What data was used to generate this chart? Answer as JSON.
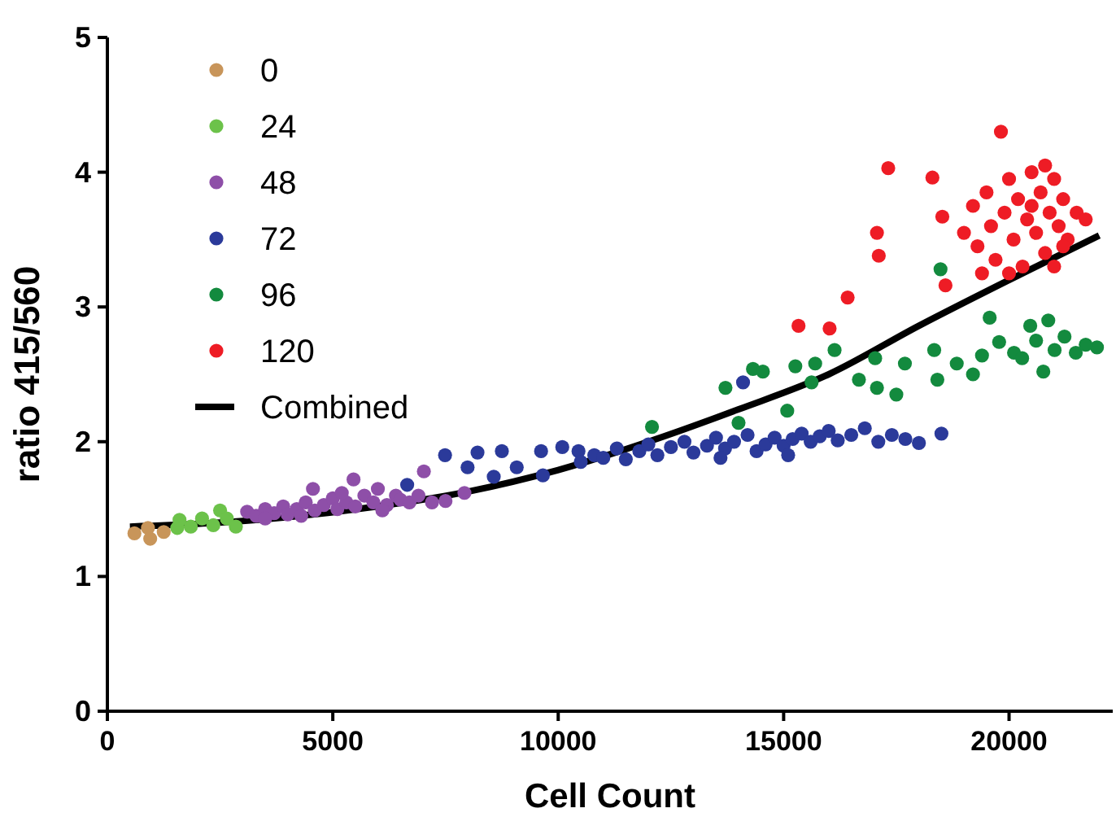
{
  "chart_data": {
    "type": "scatter",
    "xlabel": "Cell Count",
    "ylabel": "ratio 415/560",
    "xlim": [
      0,
      22300
    ],
    "ylim": [
      0,
      5
    ],
    "xticks": [
      0,
      5000,
      10000,
      15000,
      20000
    ],
    "yticks": [
      0,
      1,
      2,
      3,
      4,
      5
    ],
    "grid": false,
    "legend": "top left",
    "marker": "circle",
    "series": [
      {
        "name": "0",
        "color": "#c8955a",
        "x": [
          600,
          900,
          950,
          1250
        ],
        "values": [
          1.32,
          1.36,
          1.28,
          1.33
        ]
      },
      {
        "name": "24",
        "color": "#6cc24a",
        "x": [
          1550,
          1600,
          1850,
          2100,
          2350,
          2500,
          2650,
          2850
        ],
        "values": [
          1.36,
          1.42,
          1.37,
          1.43,
          1.38,
          1.49,
          1.43,
          1.37
        ]
      },
      {
        "name": "48",
        "color": "#8e4fa8",
        "x": [
          3100,
          3300,
          3500,
          3700,
          3900,
          4000,
          4200,
          4400,
          4560,
          4600,
          4800,
          5000,
          5100,
          5300,
          5460,
          5500,
          5700,
          5900,
          6000,
          6200,
          6400,
          6500,
          6700,
          6900,
          7020,
          7200,
          7500,
          7920,
          3500,
          4300,
          5200,
          6100
        ],
        "values": [
          1.48,
          1.45,
          1.5,
          1.47,
          1.52,
          1.46,
          1.5,
          1.55,
          1.65,
          1.49,
          1.53,
          1.58,
          1.5,
          1.55,
          1.72,
          1.52,
          1.6,
          1.55,
          1.65,
          1.53,
          1.6,
          1.57,
          1.55,
          1.6,
          1.78,
          1.55,
          1.56,
          1.62,
          1.43,
          1.45,
          1.62,
          1.49
        ]
      },
      {
        "name": "72",
        "color": "#2b3a9a",
        "x": [
          6650,
          7490,
          7990,
          8210,
          8750,
          8570,
          9080,
          9620,
          9660,
          10090,
          10450,
          10500,
          10800,
          11000,
          11300,
          11500,
          11800,
          12000,
          12200,
          12500,
          12800,
          13000,
          13300,
          13500,
          13700,
          13900,
          14100,
          14200,
          14400,
          14600,
          14800,
          15000,
          15200,
          15400,
          15600,
          15800,
          16000,
          16200,
          16500,
          16800,
          17100,
          17400,
          17700,
          18000,
          18500,
          13600,
          15100
        ],
        "values": [
          1.68,
          1.9,
          1.81,
          1.92,
          1.93,
          1.74,
          1.81,
          1.93,
          1.75,
          1.96,
          1.93,
          1.85,
          1.9,
          1.88,
          1.95,
          1.87,
          1.93,
          1.98,
          1.9,
          1.96,
          2.0,
          1.92,
          1.97,
          2.03,
          1.95,
          2.0,
          2.44,
          2.05,
          1.93,
          1.98,
          2.03,
          1.97,
          2.02,
          2.06,
          2.0,
          2.04,
          2.08,
          2.01,
          2.05,
          2.1,
          2.0,
          2.05,
          2.02,
          1.99,
          2.06,
          1.88,
          1.9
        ]
      },
      {
        "name": "96",
        "color": "#138a3e",
        "x": [
          12080,
          13710,
          14000,
          14320,
          14540,
          15080,
          15260,
          15620,
          15700,
          16130,
          16670,
          17030,
          17070,
          17500,
          17690,
          18340,
          18410,
          18480,
          18840,
          19200,
          19570,
          19780,
          20110,
          20290,
          20470,
          20760,
          20870,
          21010,
          21230,
          21480,
          21950,
          19400,
          20600,
          21700
        ],
        "values": [
          2.11,
          2.4,
          2.14,
          2.54,
          2.52,
          2.23,
          2.56,
          2.44,
          2.58,
          2.68,
          2.46,
          2.62,
          2.4,
          2.35,
          2.58,
          2.68,
          2.46,
          3.28,
          2.58,
          2.5,
          2.92,
          2.74,
          2.66,
          2.62,
          2.86,
          2.52,
          2.9,
          2.68,
          2.78,
          2.66,
          2.7,
          2.64,
          2.75,
          2.72
        ]
      },
      {
        "name": "120",
        "color": "#ee1c25",
        "x": [
          15330,
          16020,
          16420,
          17110,
          17070,
          17320,
          18300,
          18520,
          18590,
          19820,
          19000,
          19200,
          19300,
          19500,
          19600,
          19700,
          19900,
          20000,
          20100,
          20200,
          20300,
          20400,
          20500,
          20600,
          20700,
          20800,
          20900,
          21000,
          21100,
          21200,
          21300,
          21500,
          21700,
          20000,
          20500,
          21000,
          19400,
          20800,
          21200
        ],
        "values": [
          2.86,
          2.84,
          3.07,
          3.38,
          3.55,
          4.03,
          3.96,
          3.67,
          3.16,
          4.3,
          3.55,
          3.75,
          3.45,
          3.85,
          3.6,
          3.35,
          3.7,
          3.95,
          3.5,
          3.8,
          3.3,
          3.65,
          4.0,
          3.55,
          3.85,
          3.4,
          3.7,
          3.95,
          3.6,
          3.8,
          3.5,
          3.7,
          3.65,
          3.25,
          3.75,
          3.3,
          3.25,
          4.05,
          3.45
        ]
      },
      {
        "name": "Combined",
        "type": "line",
        "color": "#000000",
        "marker": "none",
        "x": [
          500,
          2000,
          4000,
          6000,
          8000,
          10000,
          12000,
          14000,
          16000,
          18000,
          20000,
          22000
        ],
        "values": [
          1.37,
          1.39,
          1.44,
          1.52,
          1.63,
          1.79,
          2.0,
          2.24,
          2.5,
          2.86,
          3.2,
          3.53
        ]
      }
    ]
  }
}
